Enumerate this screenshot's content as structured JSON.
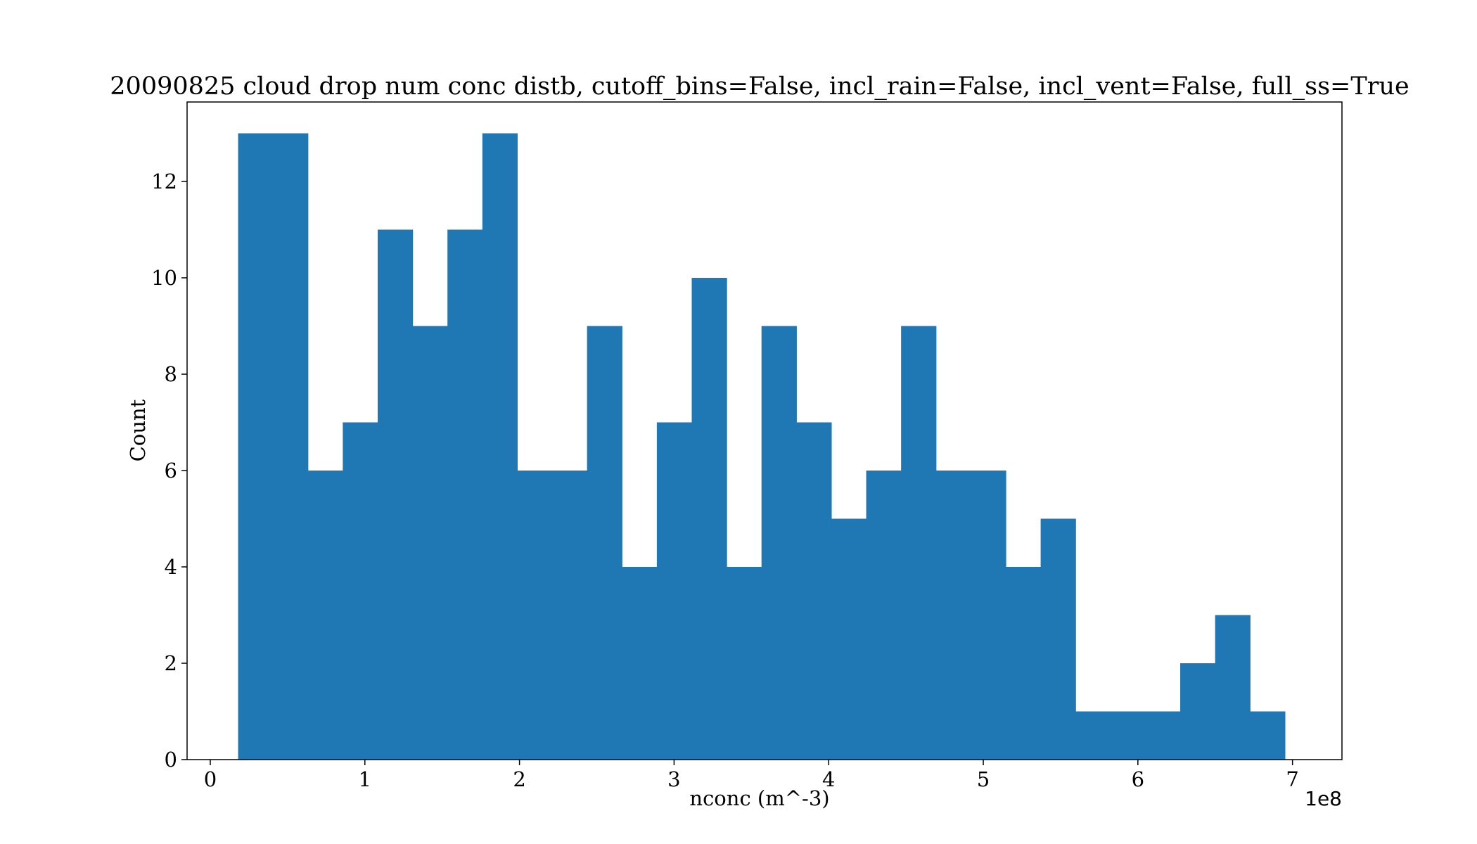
{
  "chart_data": {
    "type": "bar",
    "title": "20090825 cloud drop num conc distb, cutoff_bins=False, incl_rain=False, incl_vent=False, full_ss=True",
    "xlabel": "nconc (m^-3)",
    "ylabel": "Count",
    "x_offset_label": "1e8",
    "xlim": [
      -0.15,
      7.32
    ],
    "ylim": [
      0,
      13.65
    ],
    "x_ticks": [
      0,
      1,
      2,
      3,
      4,
      5,
      6,
      7
    ],
    "y_ticks": [
      0,
      2,
      4,
      6,
      8,
      10,
      12
    ],
    "bin_start": 0.18,
    "bin_width": 0.2257,
    "values": [
      13,
      13,
      6,
      7,
      11,
      9,
      11,
      13,
      6,
      6,
      9,
      4,
      7,
      10,
      4,
      9,
      7,
      5,
      6,
      9,
      6,
      6,
      4,
      5,
      1,
      1,
      1,
      2,
      3,
      1
    ],
    "bar_color": "#1f77b4",
    "grid": false,
    "legend": "none"
  }
}
